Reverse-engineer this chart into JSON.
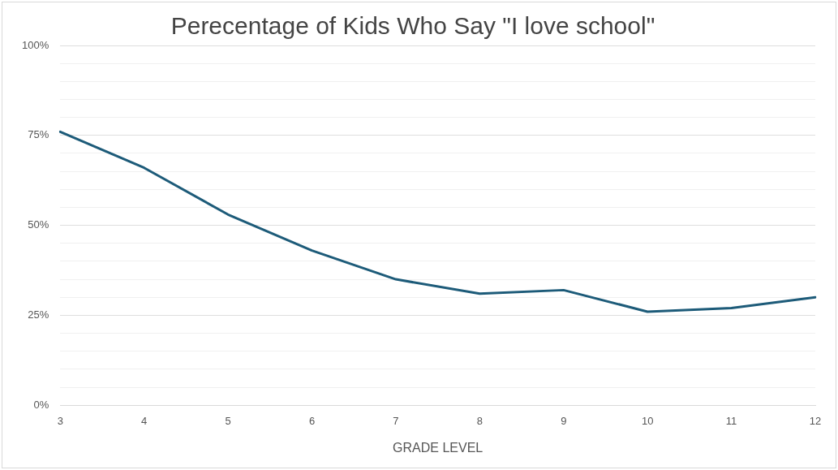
{
  "chart_data": {
    "type": "line",
    "title": "Perecentage of Kids Who Say \"I love school\"",
    "xlabel": "GRADE LEVEL",
    "categories": [
      "3",
      "4",
      "5",
      "6",
      "7",
      "8",
      "9",
      "10",
      "11",
      "12"
    ],
    "series": [
      {
        "color": "#1d5b79",
        "values": [
          76,
          66,
          53,
          43,
          35,
          31,
          32,
          26,
          27,
          30
        ]
      }
    ],
    "ylim": [
      0,
      100
    ],
    "yticks": [
      {
        "value": 0,
        "label": "0%"
      },
      {
        "value": 5,
        "label": null
      },
      {
        "value": 10,
        "label": null
      },
      {
        "value": 15,
        "label": null
      },
      {
        "value": 20,
        "label": null
      },
      {
        "value": 25,
        "label": "25%"
      },
      {
        "value": 30,
        "label": null
      },
      {
        "value": 35,
        "label": null
      },
      {
        "value": 40,
        "label": null
      },
      {
        "value": 45,
        "label": null
      },
      {
        "value": 50,
        "label": "50%"
      },
      {
        "value": 55,
        "label": null
      },
      {
        "value": 60,
        "label": null
      },
      {
        "value": 65,
        "label": null
      },
      {
        "value": 70,
        "label": null
      },
      {
        "value": 75,
        "label": "75%"
      },
      {
        "value": 80,
        "label": null
      },
      {
        "value": 85,
        "label": null
      },
      {
        "value": 90,
        "label": null
      },
      {
        "value": 95,
        "label": null
      },
      {
        "value": 100,
        "label": "100%"
      }
    ],
    "grid": "y",
    "legend": false,
    "marker": "none",
    "line_style": "solid"
  }
}
